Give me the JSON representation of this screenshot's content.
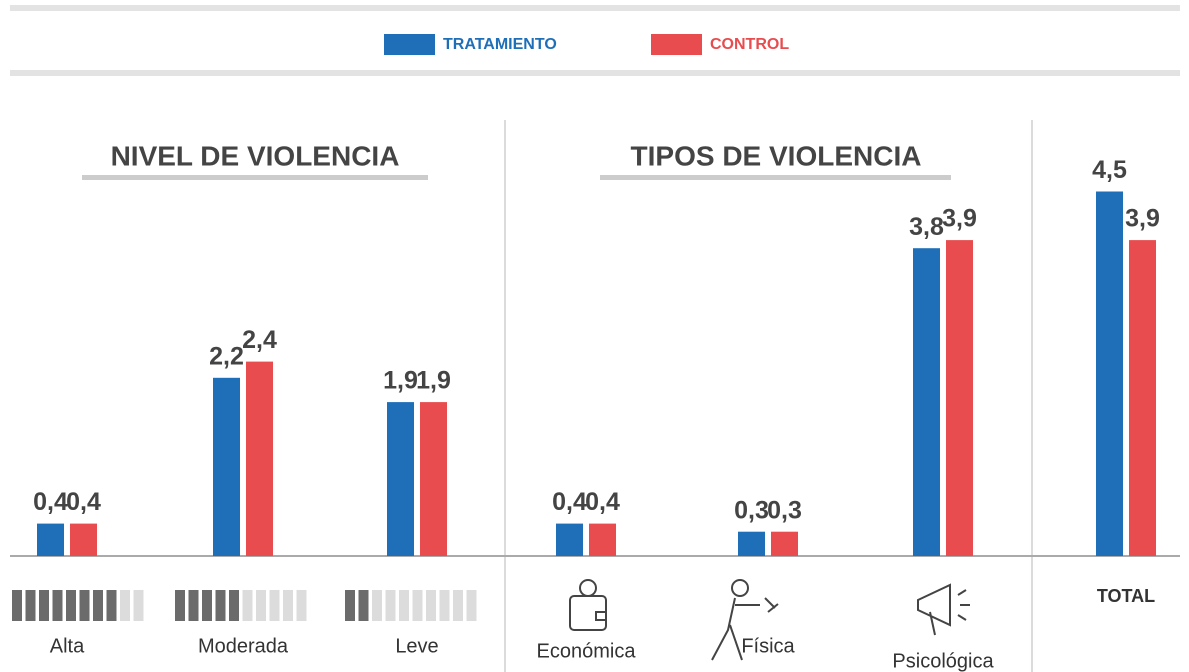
{
  "chart_data": {
    "type": "bar",
    "series": [
      {
        "name": "TRATAMIENTO",
        "color": "#1f6fb8",
        "values": [
          0.4,
          2.2,
          1.9,
          0.4,
          0.3,
          3.8,
          4.5
        ],
        "value_labels": [
          "0,4",
          "2,2",
          "1,9",
          "0,4",
          "0,3",
          "3,8",
          "4,5"
        ]
      },
      {
        "name": "CONTROL",
        "color": "#e84c4f",
        "values": [
          0.4,
          2.4,
          1.9,
          0.4,
          0.3,
          3.9,
          3.9
        ],
        "value_labels": [
          "0,4",
          "2,4",
          "1,9",
          "0,4",
          "0,3",
          "3,9",
          "3,9"
        ]
      }
    ],
    "panels": [
      {
        "title": "NIVEL DE VIOLENCIA",
        "categories": [
          "Alta",
          "Moderada",
          "Leve"
        ]
      },
      {
        "title": "TIPOS DE VIOLENCIA",
        "categories": [
          "Económica",
          "Física",
          "Psicológica"
        ]
      },
      {
        "categories": [
          "TOTAL"
        ]
      }
    ]
  }
}
